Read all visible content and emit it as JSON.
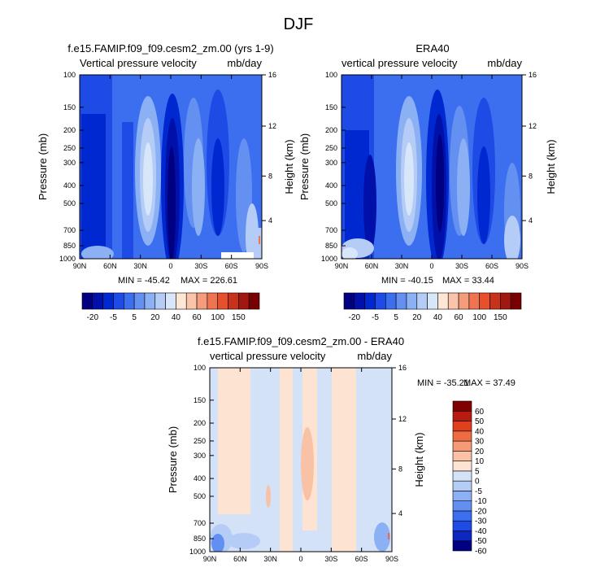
{
  "figure": {
    "title": "DJF"
  },
  "chart_data": [
    {
      "type": "heatmap",
      "title": "f.e15.FAMIP.f09_f09.cesm2_zm.00 (yrs 1-9)",
      "left_label": "Vertical pressure velocity",
      "right_label": "mb/day",
      "ylabel": "Pressure (mb)",
      "ylabel_right": "Height (km)",
      "x_ticks": [
        "90N",
        "60N",
        "30N",
        "0",
        "30S",
        "60S",
        "90S"
      ],
      "y_ticks": [
        "100",
        "150",
        "200",
        "250",
        "300",
        "400",
        "500",
        "700",
        "850",
        "1000"
      ],
      "y_right_ticks": [
        "16",
        "12",
        "8",
        "4"
      ],
      "xlim": [
        90,
        -90
      ],
      "ylim": [
        1000,
        100
      ],
      "y_scale": "log",
      "min_label": "MIN = -45.42",
      "max_label": "MAX = 226.61",
      "colorbar": {
        "orientation": "horizontal",
        "tick_labels": [
          "-20",
          "-5",
          "5",
          "20",
          "40",
          "60",
          "100",
          "150"
        ]
      }
    },
    {
      "type": "heatmap",
      "title": "ERA40",
      "left_label": "vertical pressure velocity",
      "right_label": "mb/day",
      "ylabel": "Pressure (mb)",
      "ylabel_right": "Height (km)",
      "x_ticks": [
        "90N",
        "60N",
        "30N",
        "0",
        "30S",
        "60S",
        "90S"
      ],
      "y_ticks": [
        "100",
        "150",
        "200",
        "250",
        "300",
        "400",
        "500",
        "700",
        "850",
        "1000"
      ],
      "y_right_ticks": [
        "16",
        "12",
        "8",
        "4"
      ],
      "xlim": [
        90,
        -90
      ],
      "ylim": [
        1000,
        100
      ],
      "y_scale": "log",
      "min_label": "MIN = -40.15",
      "max_label": "MAX = 33.44",
      "colorbar": {
        "orientation": "horizontal",
        "tick_labels": [
          "-20",
          "-5",
          "5",
          "20",
          "40",
          "60",
          "100",
          "150"
        ]
      }
    },
    {
      "type": "heatmap",
      "title": "f.e15.FAMIP.f09_f09.cesm2_zm.00 - ERA40",
      "left_label": "vertical pressure velocity",
      "right_label": "mb/day",
      "ylabel": "Pressure (mb)",
      "ylabel_right": "Height (km)",
      "x_ticks": [
        "90N",
        "60N",
        "30N",
        "0",
        "30S",
        "60S",
        "90S"
      ],
      "y_ticks": [
        "100",
        "150",
        "200",
        "250",
        "300",
        "400",
        "500",
        "700",
        "850",
        "1000"
      ],
      "y_right_ticks": [
        "16",
        "12",
        "8",
        "4"
      ],
      "xlim": [
        90,
        -90
      ],
      "ylim": [
        1000,
        100
      ],
      "y_scale": "log",
      "min_label": "MIN = -35.21",
      "max_label": "MAX = 37.49",
      "colorbar": {
        "orientation": "vertical",
        "tick_labels": [
          "60",
          "50",
          "40",
          "30",
          "20",
          "10",
          "5",
          "0",
          "-5",
          "-10",
          "-20",
          "-30",
          "-40",
          "-50",
          "-60"
        ]
      }
    }
  ],
  "palettes": {
    "abs": [
      "#000080",
      "#0010a8",
      "#0028d0",
      "#1e4ae6",
      "#3c6ef0",
      "#6490f2",
      "#8cb0f4",
      "#b4ccf6",
      "#d8e6fa",
      "#fde6d4",
      "#f9c4aa",
      "#f49c7c",
      "#ef7450",
      "#e6502c",
      "#c8321a",
      "#a01810",
      "#780000"
    ],
    "diff": [
      "#000080",
      "#0c28c0",
      "#1e4ae6",
      "#3c6ef0",
      "#648ff2",
      "#8cb0f4",
      "#b4ccf6",
      "#d4e2f8",
      "#fde4d2",
      "#f9c2a6",
      "#f49a78",
      "#ee6c44",
      "#e0401c",
      "#b81c10",
      "#800000"
    ]
  }
}
